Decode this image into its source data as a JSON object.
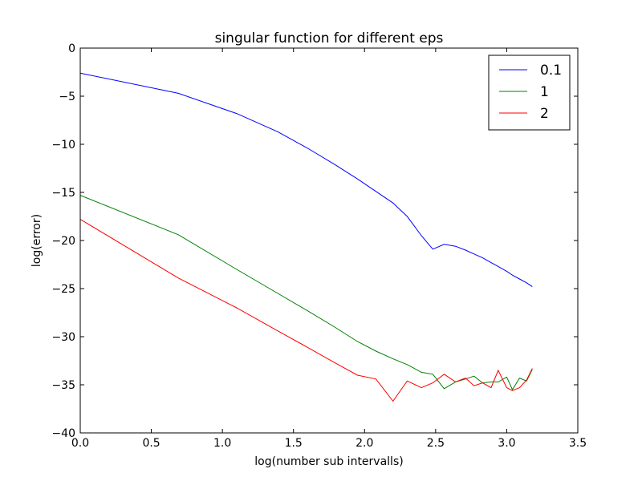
{
  "chart_data": {
    "type": "line",
    "title": "singular function for different eps",
    "xlabel": "log(number sub intervalls)",
    "ylabel": "log(error)",
    "xlim": [
      0.0,
      3.5
    ],
    "ylim": [
      -40,
      0
    ],
    "xticks": [
      0.0,
      0.5,
      1.0,
      1.5,
      2.0,
      2.5,
      3.0,
      3.5
    ],
    "xtick_labels": [
      "0.0",
      "0.5",
      "1.0",
      "1.5",
      "2.0",
      "2.5",
      "3.0",
      "3.5"
    ],
    "yticks": [
      0,
      -5,
      -10,
      -15,
      -20,
      -25,
      -30,
      -35,
      -40
    ],
    "ytick_labels": [
      "0",
      "−5",
      "−10",
      "−15",
      "−20",
      "−25",
      "−30",
      "−35",
      "−40"
    ],
    "grid": false,
    "legend": "top-right",
    "series": [
      {
        "name": "0.1",
        "color": "#0000ff",
        "x": [
          0.0,
          0.69,
          1.1,
          1.39,
          1.61,
          1.79,
          1.95,
          2.08,
          2.2,
          2.3,
          2.4,
          2.48,
          2.56,
          2.64,
          2.71,
          2.77,
          2.83,
          2.89,
          2.94,
          3.0,
          3.04,
          3.09,
          3.14,
          3.18
        ],
        "y": [
          -2.6,
          -4.7,
          -6.8,
          -8.7,
          -10.5,
          -12.1,
          -13.6,
          -14.9,
          -16.1,
          -17.5,
          -19.5,
          -20.9,
          -20.4,
          -20.6,
          -21.0,
          -21.4,
          -21.8,
          -22.3,
          -22.7,
          -23.2,
          -23.6,
          -24.0,
          -24.4,
          -24.8
        ]
      },
      {
        "name": "1",
        "color": "#008000",
        "x": [
          0.0,
          0.69,
          1.1,
          1.39,
          1.61,
          1.79,
          1.95,
          2.08,
          2.2,
          2.3,
          2.4,
          2.48,
          2.56,
          2.64,
          2.71,
          2.77,
          2.83,
          2.89,
          2.94,
          3.0,
          3.04,
          3.09,
          3.14,
          3.18
        ],
        "y": [
          -15.3,
          -19.4,
          -23.0,
          -25.5,
          -27.4,
          -29.0,
          -30.5,
          -31.5,
          -32.3,
          -32.9,
          -33.7,
          -33.9,
          -35.4,
          -34.7,
          -34.4,
          -34.1,
          -34.8,
          -34.7,
          -34.7,
          -34.2,
          -35.5,
          -34.3,
          -34.6,
          -33.4
        ]
      },
      {
        "name": "2",
        "color": "#ff0000",
        "x": [
          0.0,
          0.69,
          1.1,
          1.39,
          1.61,
          1.79,
          1.95,
          2.08,
          2.2,
          2.3,
          2.4,
          2.48,
          2.56,
          2.64,
          2.71,
          2.77,
          2.83,
          2.89,
          2.94,
          3.0,
          3.04,
          3.09,
          3.14,
          3.18
        ],
        "y": [
          -17.8,
          -23.9,
          -27.0,
          -29.4,
          -31.2,
          -32.7,
          -34.0,
          -34.4,
          -36.7,
          -34.6,
          -35.3,
          -34.8,
          -33.9,
          -34.7,
          -34.3,
          -35.1,
          -34.8,
          -35.3,
          -33.5,
          -35.3,
          -35.6,
          -35.3,
          -34.5,
          -33.3
        ]
      }
    ]
  }
}
